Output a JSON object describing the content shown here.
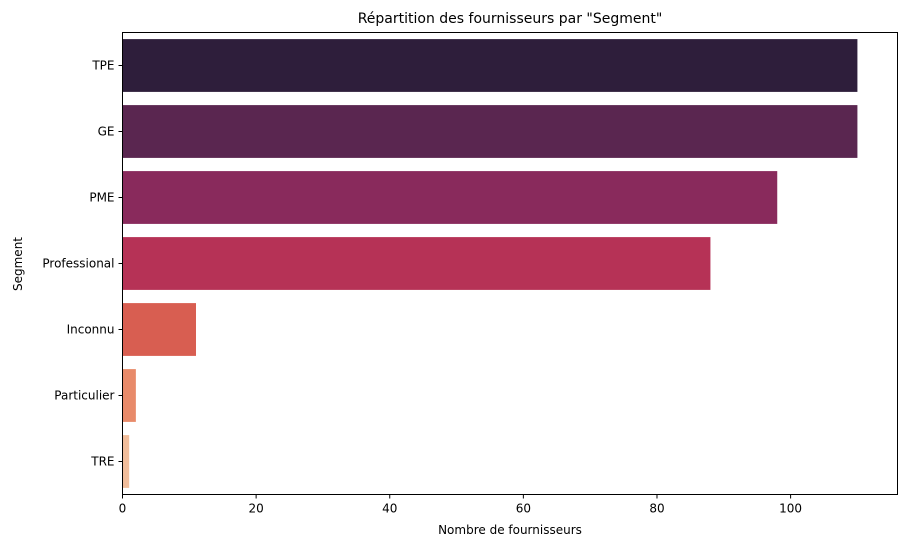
{
  "chart_data": {
    "type": "bar",
    "orientation": "horizontal",
    "title": "Répartition des fournisseurs par \"Segment\"",
    "xlabel": "Nombre de fournisseurs",
    "ylabel": "Segment",
    "categories": [
      "TPE",
      "GE",
      "PME",
      "Professional",
      "Inconnu",
      "Particulier",
      "TRE"
    ],
    "values": [
      110,
      110,
      98,
      88,
      11,
      2,
      1
    ],
    "colors": [
      "#2e1e3b",
      "#5a2650",
      "#892a5c",
      "#b63256",
      "#d85e51",
      "#e88a6a",
      "#f1bd9b"
    ],
    "xlim": [
      0,
      116
    ],
    "xticks": [
      0,
      20,
      40,
      60,
      80,
      100
    ],
    "grid": false,
    "legend": "none"
  }
}
